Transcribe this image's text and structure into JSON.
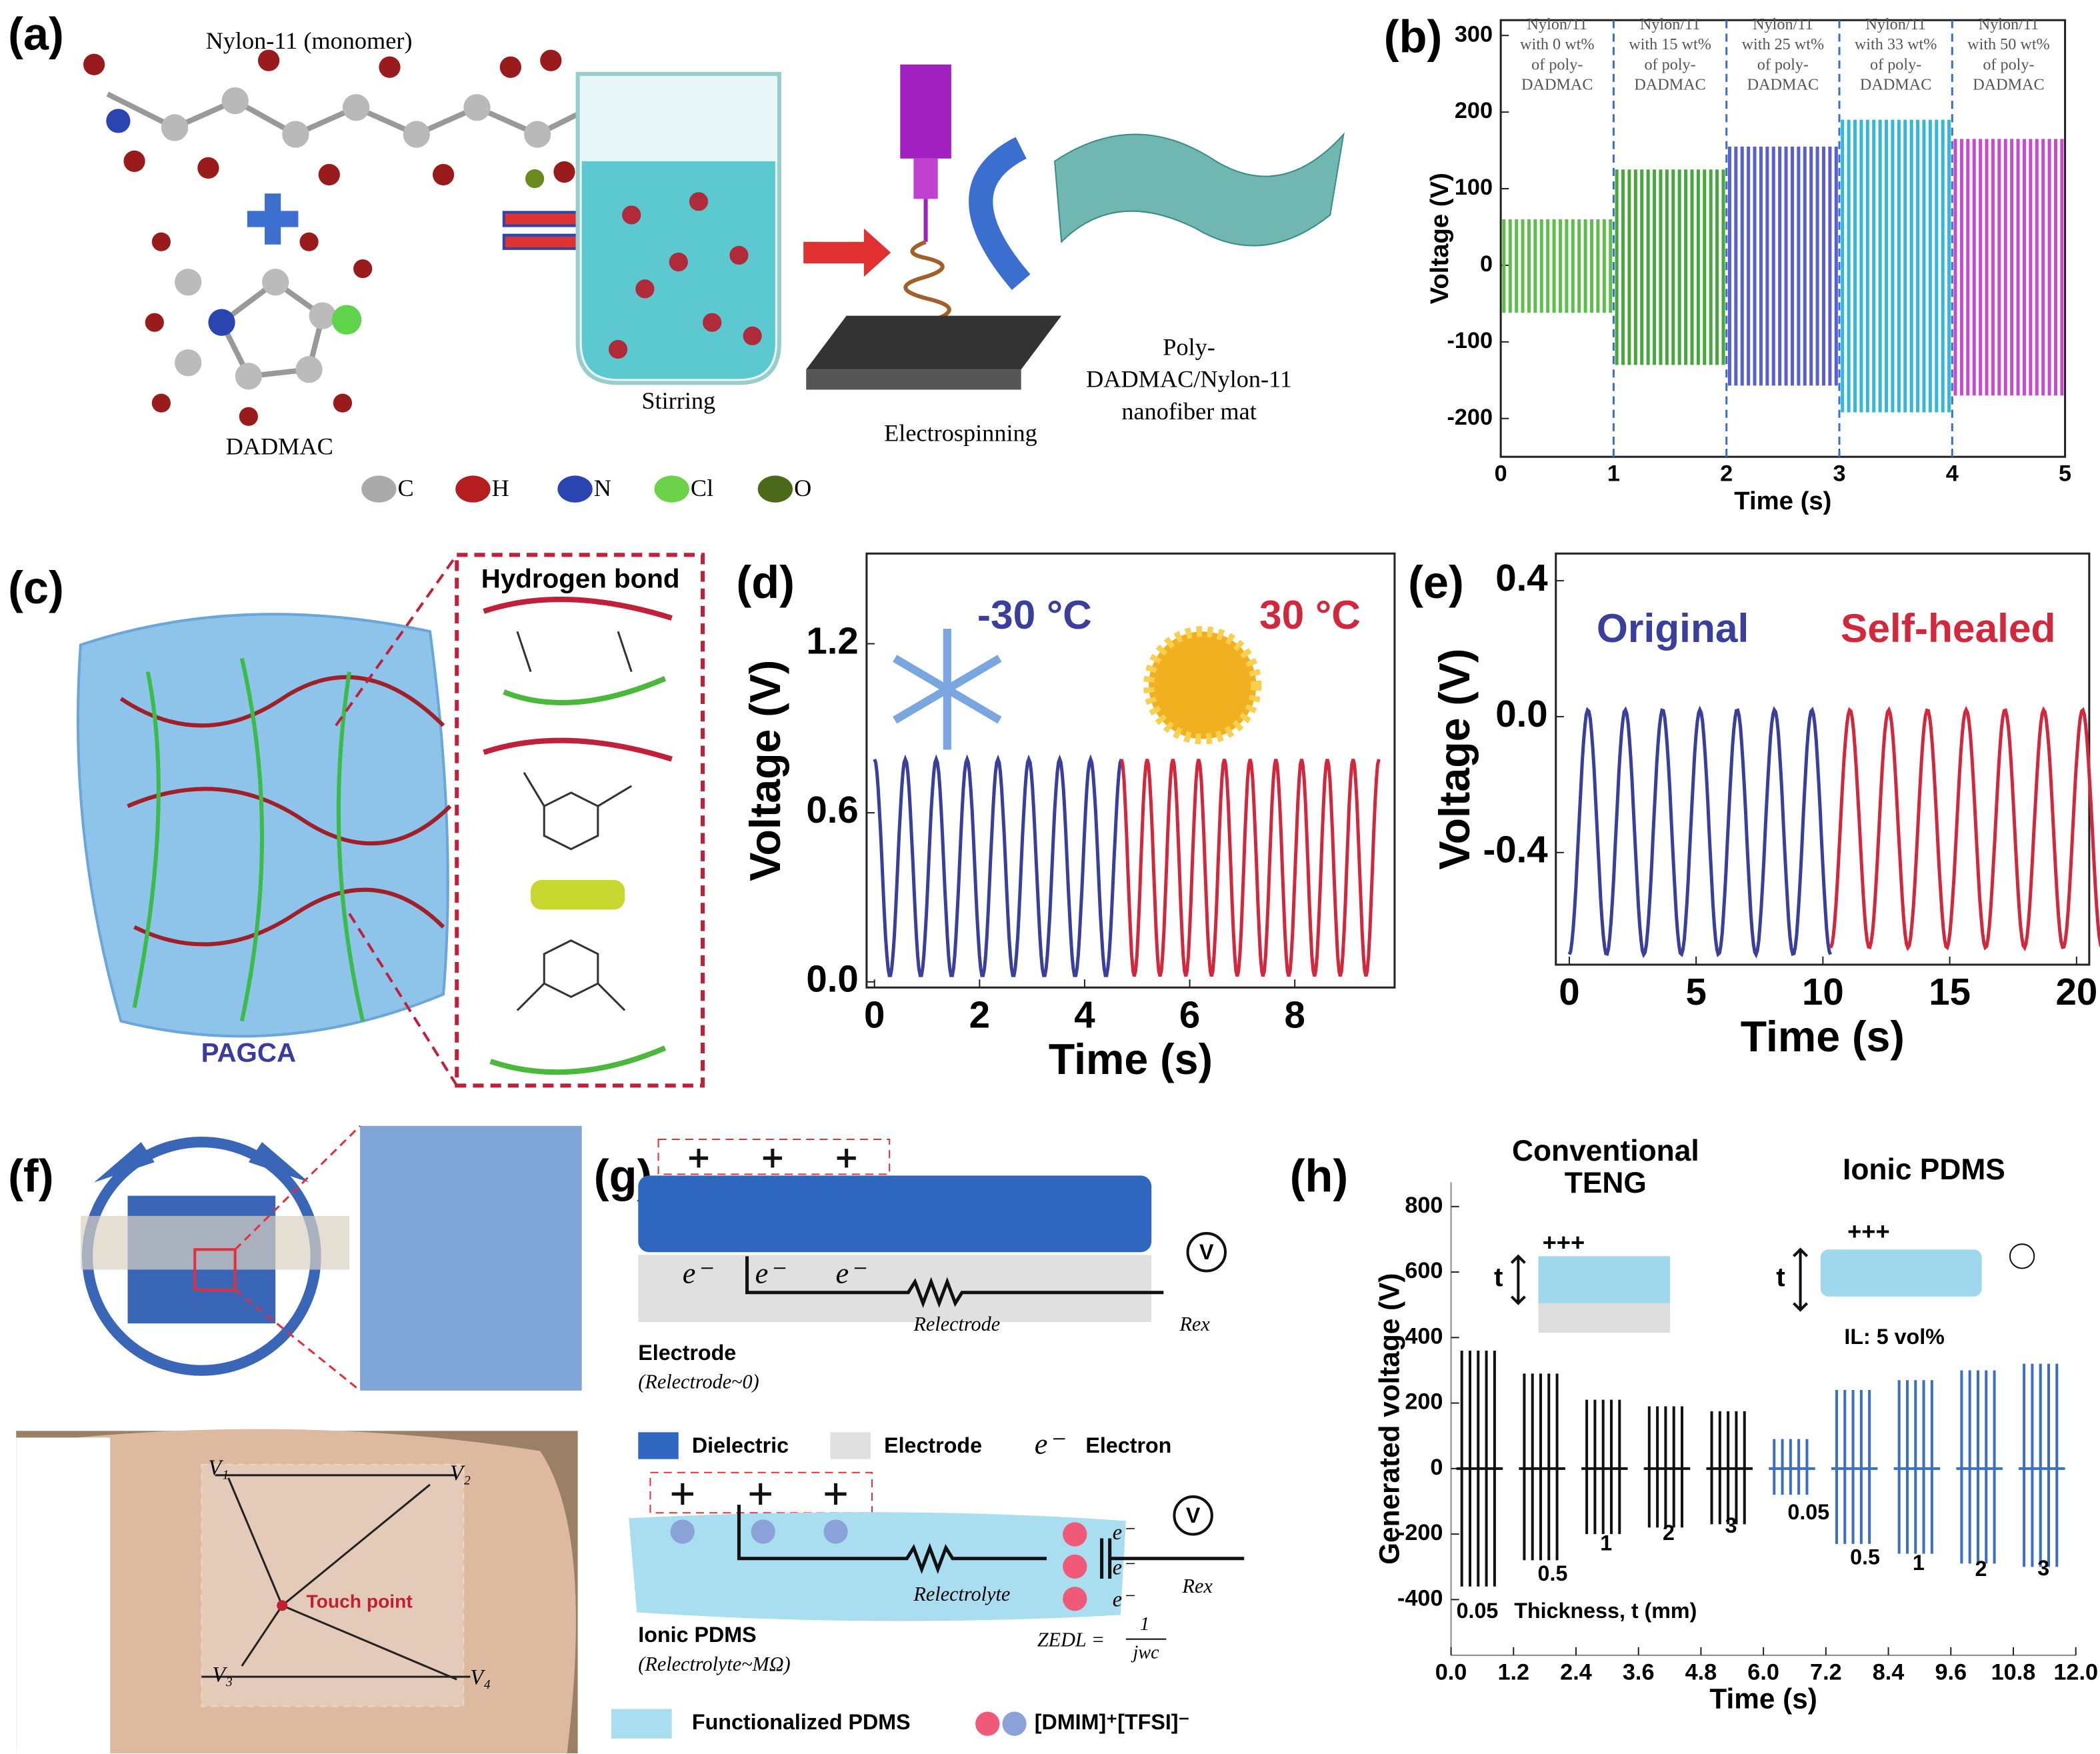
{
  "panel_labels": [
    "(a)",
    "(b)",
    "(c)",
    "(d)",
    "(e)",
    "(f)",
    "(g)",
    "(h)"
  ],
  "diagram_a": {
    "monomer": "Nylon-11 (monomer)",
    "salt": "DADMAC",
    "step1": "Stirring",
    "step2": "Electrospinning",
    "product": [
      "Poly-",
      "DADMAC/Nylon-11",
      "nanofiber mat"
    ],
    "atoms": [
      "C",
      "H",
      "N",
      "Cl",
      "O"
    ]
  },
  "diagram_c": {
    "title": "Hydrogen bond",
    "material": "PAGCA"
  },
  "diagram_f": {
    "touch": "Touch point",
    "nodes": [
      "V₁",
      "V₂",
      "V₃",
      "V₄"
    ]
  },
  "diagram_g": {
    "electron": "e⁻",
    "voltmeter": "V",
    "r_electrode": "Relectrode",
    "r_ex": "Rex",
    "electrode": "Electrode",
    "electrode_note": "(Relectrode~0)",
    "legend": [
      "Dielectric",
      "Electrode",
      "Electron"
    ],
    "r_electrolyte": "Relectrolyte",
    "z_edl": "ZEDL =",
    "z_num": "1",
    "z_den": "jwc",
    "ionic": "Ionic PDMS",
    "ionic_note": "(Relectrolyte~MΩ)",
    "legend2": [
      "Functionalized PDMS",
      "[DMIM]⁺[TFSI]⁻"
    ]
  },
  "chart_data": [
    {
      "type": "spikes",
      "ylabel": "Voltage (V)",
      "xlabel": "Time (s)",
      "xlim": [
        0,
        5
      ],
      "xticks": [
        0,
        1,
        2,
        3,
        4,
        5
      ],
      "ylim": [
        -250,
        320
      ],
      "yticks": [
        -200,
        -100,
        0,
        100,
        200,
        300
      ],
      "series": [
        {
          "name": [
            "Nylon/11",
            "with 0 wt%",
            "of poly-",
            "DADMAC"
          ],
          "color": "#5cbf4a",
          "x_range": [
            0,
            1
          ],
          "max": 60,
          "min": -62
        },
        {
          "name": [
            "Nylon/11",
            "with 15 wt%",
            "of poly-",
            "DADMAC"
          ],
          "color": "#46a83a",
          "x_range": [
            1,
            2
          ],
          "max": 125,
          "min": -130
        },
        {
          "name": [
            "Nylon/11",
            "with 25 wt%",
            "of poly-",
            "DADMAC"
          ],
          "color": "#5a5fd0",
          "x_range": [
            2,
            3
          ],
          "max": 155,
          "min": -157
        },
        {
          "name": [
            "Nylon/11",
            "with 33 wt%",
            "of poly-",
            "DADMAC"
          ],
          "color": "#33b8d8",
          "x_range": [
            3,
            4
          ],
          "max": 190,
          "min": -192
        },
        {
          "name": [
            "Nylon/11",
            "with 50 wt%",
            "of poly-",
            "DADMAC"
          ],
          "color": "#c84ad0",
          "x_range": [
            4,
            5
          ],
          "max": 165,
          "min": -170
        }
      ]
    },
    {
      "type": "wave",
      "ylabel": "Voltage (V)",
      "xlabel": "Time (s)",
      "xlim": [
        -0.15,
        9.9
      ],
      "xticks": [
        0,
        2,
        4,
        6,
        8
      ],
      "ylim": [
        -0.02,
        1.52
      ],
      "yticks": [
        0.0,
        0.6,
        1.2
      ],
      "ytick_labels": [
        "0.0",
        "0.6",
        "1.2"
      ],
      "series": [
        {
          "name": "-30 °C",
          "color": "#3b3f9c",
          "x_range": [
            0,
            4.7
          ],
          "cycles": 8,
          "max": 0.79,
          "min": 0.02
        },
        {
          "name": "30 °C",
          "color": "#d2283e",
          "x_range": [
            4.7,
            9.6
          ],
          "cycles": 10,
          "max": 0.79,
          "min": 0.02
        }
      ]
    },
    {
      "type": "wave",
      "ylabel": "Voltage (V)",
      "xlabel": "Time (s)",
      "xlim": [
        -0.53,
        20.5
      ],
      "xticks": [
        0,
        5,
        10,
        15,
        20
      ],
      "ylim": [
        -0.73,
        0.48
      ],
      "yticks": [
        -0.4,
        0.0,
        0.4
      ],
      "ytick_labels": [
        "-0.4",
        "0.0",
        "0.4"
      ],
      "series": [
        {
          "name": "Original",
          "color": "#3b3f9c",
          "x_range": [
            0,
            10.3
          ],
          "cycles": 7,
          "max": 0.02,
          "min": -0.7
        },
        {
          "name": "Self-healed",
          "color": "#d2283e",
          "x_range": [
            10.3,
            21
          ],
          "cycles": 7,
          "max": 0.02,
          "min": -0.68
        }
      ]
    },
    {
      "type": "groups",
      "ylabel": "Generated voltage (V)",
      "xlabel": "Time (s)",
      "xlim": [
        0,
        12
      ],
      "ylim": [
        -570,
        874
      ],
      "yticks": [
        -400,
        -200,
        0,
        200,
        400,
        600,
        800
      ],
      "xticks": [
        {
          "value": 0,
          "label": "0.0"
        },
        {
          "value": 1.2,
          "label": "1.2"
        },
        {
          "value": 2.4,
          "label": "2.4"
        },
        {
          "value": 3.6,
          "label": "3.6"
        },
        {
          "value": 4.8,
          "label": "4.8"
        },
        {
          "value": 6,
          "label": "6.0"
        },
        {
          "value": 7.2,
          "label": "7.2"
        },
        {
          "value": 8.4,
          "label": "8.4"
        },
        {
          "value": 9.6,
          "label": "9.6"
        },
        {
          "value": 10.8,
          "label": "10.8"
        },
        {
          "value": 12,
          "label": "12.0"
        }
      ],
      "headings": [
        [
          "Conventional",
          "TENG"
        ],
        [
          "Ionic PDMS"
        ]
      ],
      "inset_note": "IL: 5 vol%",
      "charges": "+++",
      "thickness_symbol": "t",
      "thickness_label": "Thickness, t (mm)",
      "series": [
        {
          "color": "#111111",
          "groups": [
            {
              "label": "0.05",
              "x_range": [
                0,
                1.2
              ],
              "max": 360,
              "min": -360
            },
            {
              "label": "0.5",
              "x_range": [
                1.2,
                2.4
              ],
              "max": 290,
              "min": -280
            },
            {
              "label": "1",
              "x_range": [
                2.4,
                3.6
              ],
              "max": 210,
              "min": -200
            },
            {
              "label": "2",
              "x_range": [
                3.6,
                4.8
              ],
              "max": 190,
              "min": -180
            },
            {
              "label": "3",
              "x_range": [
                4.8,
                6
              ],
              "max": 175,
              "min": -170
            }
          ]
        },
        {
          "color": "#3b6fc4",
          "groups": [
            {
              "label": "0.05",
              "x_range": [
                6,
                7.2
              ],
              "max": 90,
              "min": -80
            },
            {
              "label": "0.5",
              "x_range": [
                7.2,
                8.4
              ],
              "max": 240,
              "min": -230
            },
            {
              "label": "1",
              "x_range": [
                8.4,
                9.6
              ],
              "max": 270,
              "min": -260
            },
            {
              "label": "2",
              "x_range": [
                9.6,
                10.8
              ],
              "max": 300,
              "min": -290
            },
            {
              "label": "3",
              "x_range": [
                10.8,
                12
              ],
              "max": 320,
              "min": -300
            }
          ]
        }
      ]
    }
  ]
}
